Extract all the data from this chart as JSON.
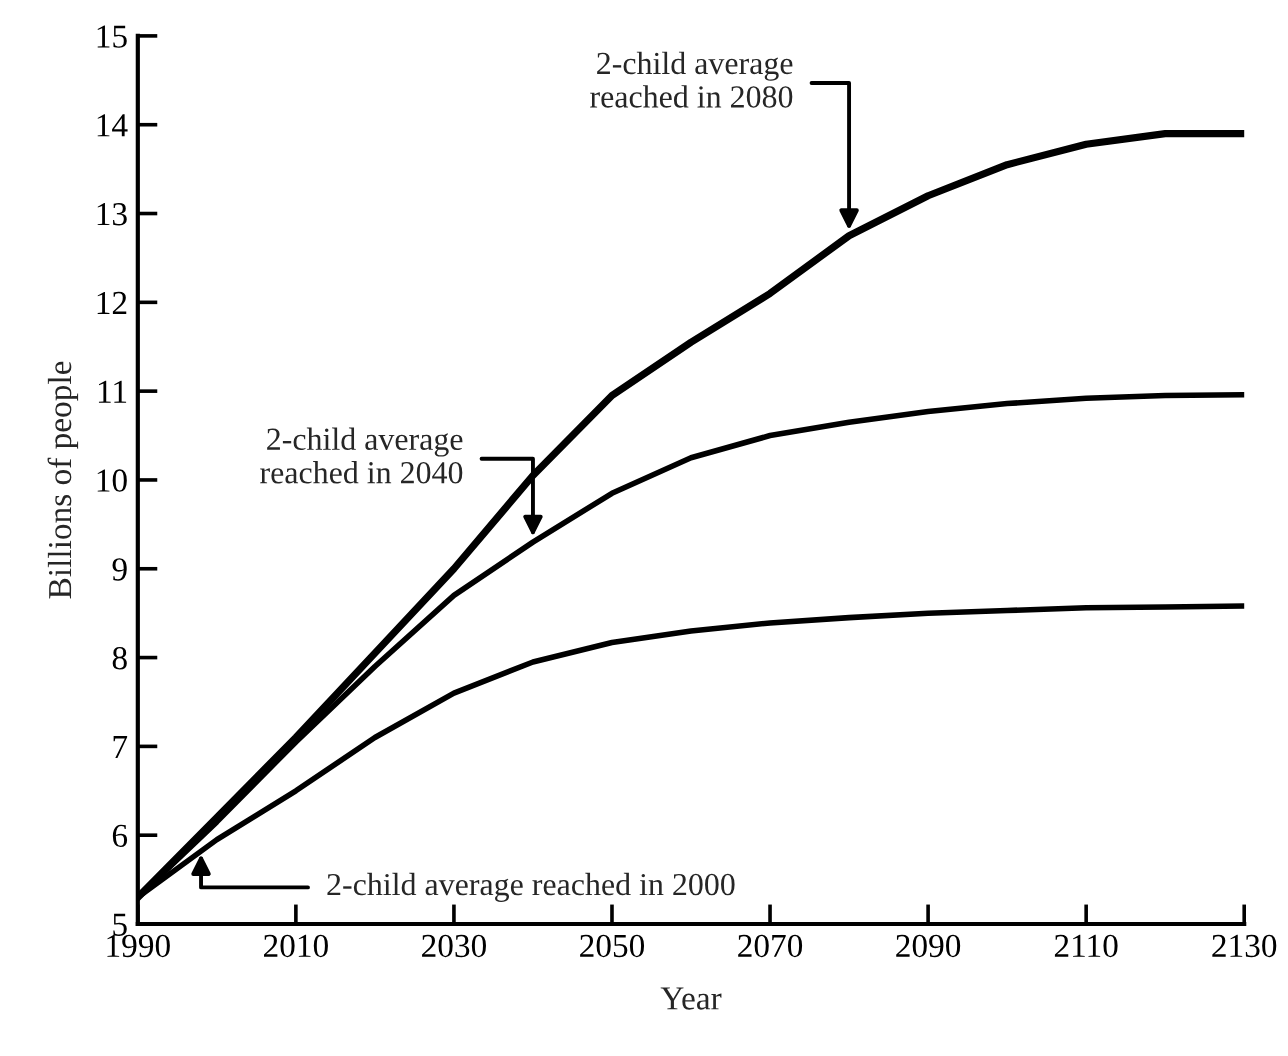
{
  "chart_data": {
    "type": "line",
    "xlabel": "Year",
    "ylabel": "Billions of people",
    "x": [
      1990,
      2000,
      2010,
      2020,
      2030,
      2040,
      2050,
      2060,
      2070,
      2080,
      2090,
      2100,
      2110,
      2120,
      2130
    ],
    "series": [
      {
        "color": "#000000",
        "values": [
          5.3,
          6.2,
          7.1,
          8.05,
          9.0,
          10.05,
          10.95,
          11.55,
          12.1,
          12.75,
          13.2,
          13.55,
          13.78,
          13.9,
          13.9
        ]
      },
      {
        "color": "#000000",
        "values": [
          5.3,
          6.15,
          7.05,
          7.9,
          8.7,
          9.3,
          9.85,
          10.25,
          10.5,
          10.65,
          10.77,
          10.86,
          10.92,
          10.95,
          10.96
        ]
      },
      {
        "color": "#000000",
        "values": [
          5.3,
          5.95,
          6.5,
          7.1,
          7.6,
          7.95,
          8.17,
          8.3,
          8.39,
          8.45,
          8.5,
          8.53,
          8.56,
          8.57,
          8.58
        ]
      }
    ],
    "annotations": [
      {
        "text": "2-child average\nreached in 2080",
        "x": 2080,
        "y": 12.75
      },
      {
        "text": "2-child average\nreached in 2040",
        "x": 2040,
        "y": 9.3
      },
      {
        "text": "2-child average reached in 2000",
        "x": 1998,
        "y": 5.85
      }
    ],
    "xlim": [
      1990,
      2130
    ],
    "xticks": [
      1990,
      2010,
      2030,
      2050,
      2070,
      2090,
      2110,
      2130
    ],
    "ylim": [
      5,
      15
    ],
    "yticks": [
      5,
      6,
      7,
      8,
      9,
      10,
      11,
      12,
      13,
      14,
      15
    ],
    "grid": false,
    "legend": false,
    "marker": "none",
    "line_style": "solid"
  }
}
